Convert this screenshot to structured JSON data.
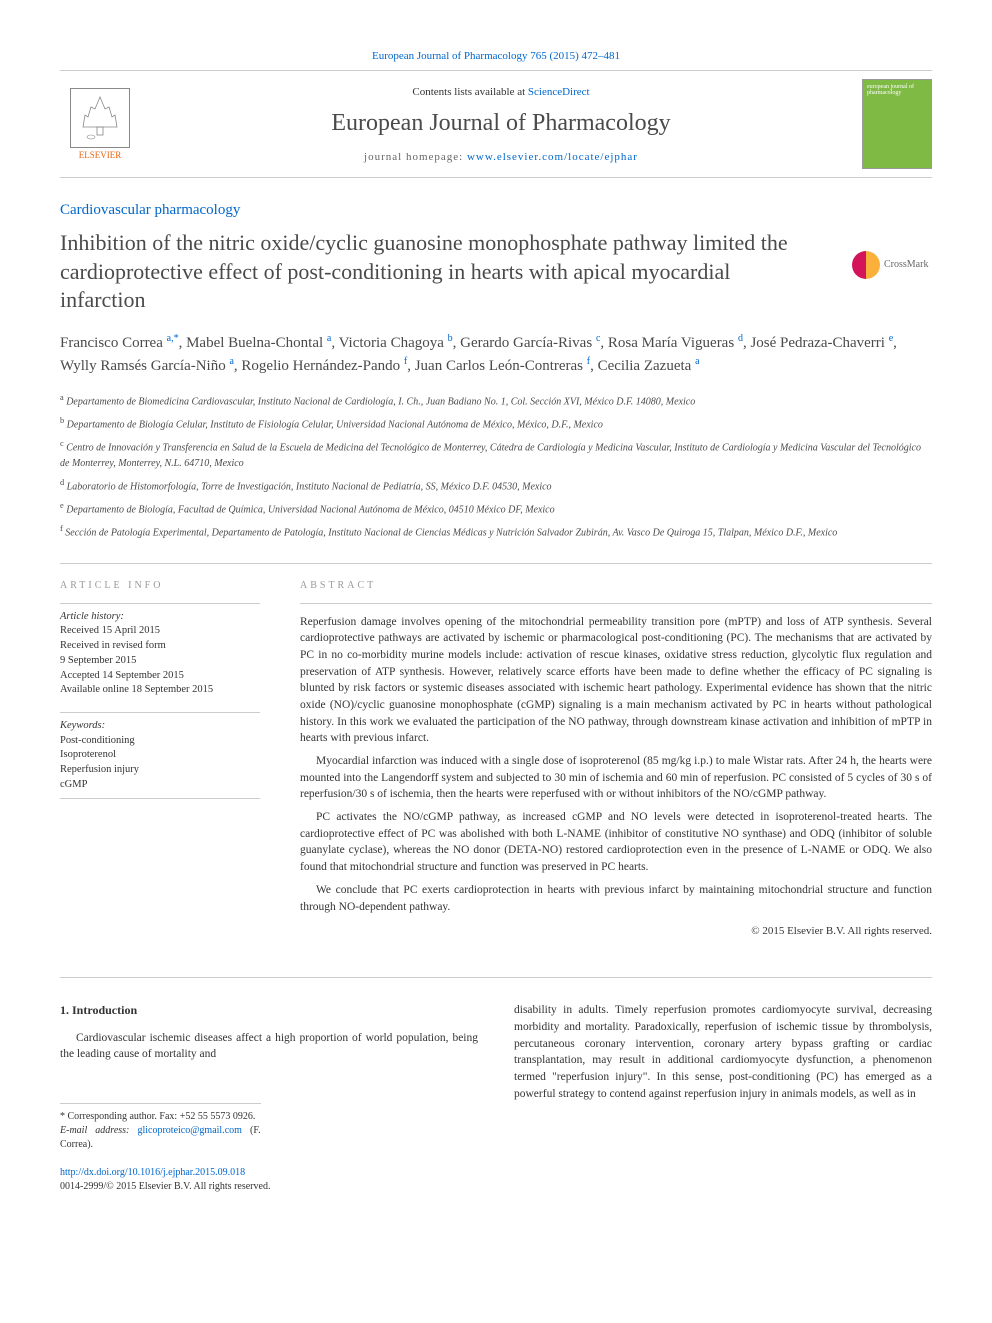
{
  "top_link": {
    "prefix": "",
    "text": "European Journal of Pharmacology 765 (2015) 472–481",
    "url": "#"
  },
  "header": {
    "contents_prefix": "Contents lists available at ",
    "contents_link": "ScienceDirect",
    "journal_name": "European Journal of Pharmacology",
    "homepage_prefix": "journal homepage: ",
    "homepage_link": "www.elsevier.com/locate/ejphar",
    "elsevier_label": "ELSEVIER"
  },
  "section_tag": "Cardiovascular pharmacology",
  "article_title": "Inhibition of the nitric oxide/cyclic guanosine monophosphate pathway limited the cardioprotective effect of post-conditioning in hearts with apical myocardial infarction",
  "crossmark": "CrossMark",
  "authors_html": "Francisco Correa <sup>a,*</sup>, Mabel Buelna-Chontal <sup>a</sup>, Victoria Chagoya <sup>b</sup>, Gerardo García-Rivas <sup>c</sup>, Rosa María Vigueras <sup>d</sup>, José Pedraza-Chaverri <sup>e</sup>, Wylly Ramsés García-Niño <sup>a</sup>, Rogelio Hernández-Pando <sup>f</sup>, Juan Carlos León-Contreras <sup>f</sup>, Cecilia Zazueta <sup>a</sup>",
  "affiliations": [
    {
      "sup": "a",
      "text": " Departamento de Biomedicina Cardiovascular, Instituto Nacional de Cardiología, I. Ch., Juan Badiano No. 1, Col. Sección XVI, México D.F. 14080, Mexico"
    },
    {
      "sup": "b",
      "text": " Departamento de Biología Celular, Instituto de Fisiología Celular, Universidad Nacional Autónoma de México, México, D.F., Mexico"
    },
    {
      "sup": "c",
      "text": " Centro de Innovación y Transferencia en Salud de la Escuela de Medicina del Tecnológico de Monterrey, Cátedra de Cardiología y Medicina Vascular, Instituto de Cardiología y Medicina Vascular del Tecnológico de Monterrey, Monterrey, N.L. 64710, Mexico"
    },
    {
      "sup": "d",
      "text": " Laboratorio de Histomorfología, Torre de Investigación, Instituto Nacional de Pediatría, SS, México D.F. 04530, Mexico"
    },
    {
      "sup": "e",
      "text": " Departamento de Biología, Facultad de Química, Universidad Nacional Autónoma de México, 04510 México DF, Mexico"
    },
    {
      "sup": "f",
      "text": " Sección de Patología Experimental, Departamento de Patología, Instituto Nacional de Ciencias Médicas y Nutrición Salvador Zubirán, Av. Vasco De Quiroga 15, Tlalpan, México D.F., Mexico"
    }
  ],
  "info": {
    "heading": "ARTICLE INFO",
    "history_label": "Article history:",
    "history": [
      "Received 15 April 2015",
      "Received in revised form",
      "9 September 2015",
      "Accepted 14 September 2015",
      "Available online 18 September 2015"
    ],
    "keywords_label": "Keywords:",
    "keywords": [
      "Post-conditioning",
      "Isoproterenol",
      "Reperfusion injury",
      "cGMP"
    ]
  },
  "abstract": {
    "heading": "ABSTRACT",
    "paragraphs": [
      "Reperfusion damage involves opening of the mitochondrial permeability transition pore (mPTP) and loss of ATP synthesis. Several cardioprotective pathways are activated by ischemic or pharmacological post-conditioning (PC). The mechanisms that are activated by PC in no co-morbidity murine models include: activation of rescue kinases, oxidative stress reduction, glycolytic flux regulation and preservation of ATP synthesis. However, relatively scarce efforts have been made to define whether the efficacy of PC signaling is blunted by risk factors or systemic diseases associated with ischemic heart pathology. Experimental evidence has shown that the nitric oxide (NO)/cyclic guanosine monophosphate (cGMP) signaling is a main mechanism activated by PC in hearts without pathological history. In this work we evaluated the participation of the NO pathway, through downstream kinase activation and inhibition of mPTP in hearts with previous infarct.",
      "Myocardial infarction was induced with a single dose of isoproterenol (85 mg/kg i.p.) to male Wistar rats. After 24 h, the hearts were mounted into the Langendorff system and subjected to 30 min of ischemia and 60 min of reperfusion. PC consisted of 5 cycles of 30 s of reperfusion/30 s of ischemia, then the hearts were reperfused with or without inhibitors of the NO/cGMP pathway.",
      "PC activates the NO/cGMP pathway, as increased cGMP and NO levels were detected in isoproterenol-treated hearts. The cardioprotective effect of PC was abolished with both L-NAME (inhibitor of constitutive NO synthase) and ODQ (inhibitor of soluble guanylate cyclase), whereas the NO donor (DETA-NO) restored cardioprotection even in the presence of L-NAME or ODQ. We also found that mitochondrial structure and function was preserved in PC hearts.",
      "We conclude that PC exerts cardioprotection in hearts with previous infarct by maintaining mitochondrial structure and function through NO-dependent pathway."
    ],
    "copyright": "© 2015 Elsevier B.V. All rights reserved."
  },
  "body": {
    "section_no": "1.",
    "section_title": "Introduction",
    "col1_p1": "Cardiovascular ischemic diseases affect a high proportion of world population, being the leading cause of mortality and",
    "col2_p1": "disability in adults. Timely reperfusion promotes cardiomyocyte survival, decreasing morbidity and mortality. Paradoxically, reperfusion of ischemic tissue by thrombolysis, percutaneous coronary intervention, coronary artery bypass grafting or cardiac transplantation, may result in additional cardiomyocyte dysfunction, a phenomenon termed \"reperfusion injury\". In this sense, post-conditioning (PC) has emerged as a powerful strategy to contend against reperfusion injury in animals models, as well as in"
  },
  "footnotes": {
    "corr_label": "* Corresponding author. Fax: +52 55 5573 0926.",
    "email_label": "E-mail address: ",
    "email": "glicoproteico@gmail.com",
    "email_suffix": " (F. Correa)."
  },
  "doi": {
    "link": "http://dx.doi.org/10.1016/j.ejphar.2015.09.018",
    "issn": "0014-2999/© 2015 Elsevier B.V. All rights reserved."
  },
  "colors": {
    "link": "#0066cc",
    "elsevier_orange": "#e8640e",
    "cover_green": "#7fba45",
    "text": "#333333",
    "heading_gray": "#4a4a4a",
    "border": "#cccccc"
  }
}
